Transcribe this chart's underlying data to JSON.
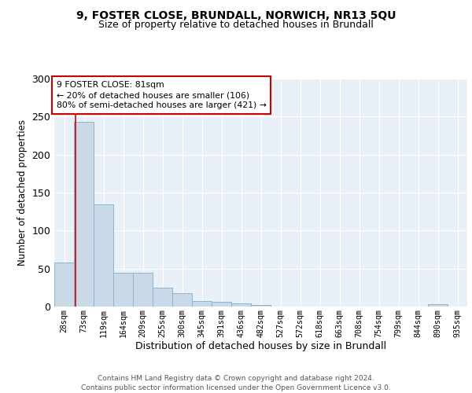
{
  "title1": "9, FOSTER CLOSE, BRUNDALL, NORWICH, NR13 5QU",
  "title2": "Size of property relative to detached houses in Brundall",
  "xlabel": "Distribution of detached houses by size in Brundall",
  "ylabel": "Number of detached properties",
  "bar_labels": [
    "28sqm",
    "73sqm",
    "119sqm",
    "164sqm",
    "209sqm",
    "255sqm",
    "300sqm",
    "345sqm",
    "391sqm",
    "436sqm",
    "482sqm",
    "527sqm",
    "572sqm",
    "618sqm",
    "663sqm",
    "708sqm",
    "754sqm",
    "799sqm",
    "844sqm",
    "890sqm",
    "935sqm"
  ],
  "bar_values": [
    58,
    243,
    134,
    45,
    45,
    25,
    18,
    7,
    6,
    4,
    2,
    0,
    0,
    0,
    0,
    0,
    0,
    0,
    0,
    3,
    0
  ],
  "bar_color": "#c9d9e8",
  "bar_edge_color": "#89b4d0",
  "vline_x": 0.575,
  "vline_color": "#cc0000",
  "annotation_text": "9 FOSTER CLOSE: 81sqm\n← 20% of detached houses are smaller (106)\n80% of semi-detached houses are larger (421) →",
  "annotation_box_color": "#ffffff",
  "annotation_box_edge": "#cc0000",
  "ylim": [
    0,
    300
  ],
  "yticks": [
    0,
    50,
    100,
    150,
    200,
    250,
    300
  ],
  "background_color": "#eaf0f8",
  "footer_text": "Contains HM Land Registry data © Crown copyright and database right 2024.\nContains public sector information licensed under the Open Government Licence v3.0.",
  "grid_color": "#ffffff",
  "title_fontsize": 10,
  "subtitle_fontsize": 9,
  "footer_fontsize": 6.5
}
